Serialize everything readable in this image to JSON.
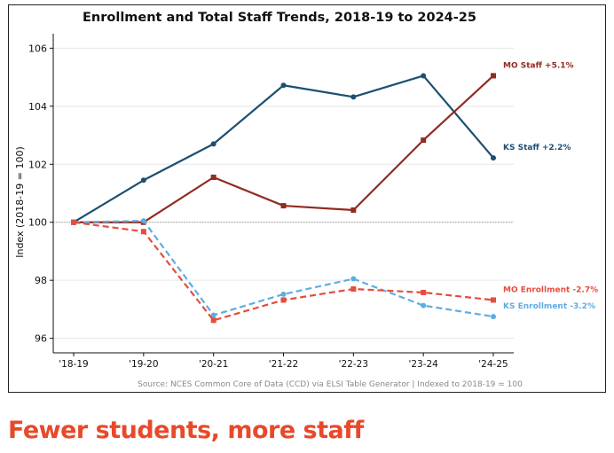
{
  "headline": "Fewer students, more staff",
  "chart_data": {
    "type": "line",
    "title": "Enrollment and Total Staff Trends, 2018-19 to 2024-25",
    "xlabel": "",
    "ylabel": "Index (2018-19 = 100)",
    "categories": [
      "'18-19",
      "'19-20",
      "'20-21",
      "'21-22",
      "'22-23",
      "'23-24",
      "'24-25"
    ],
    "ylim": [
      95.5,
      106.5
    ],
    "yticks": [
      96,
      98,
      100,
      102,
      104,
      106
    ],
    "reference_line": 100,
    "grid": true,
    "source": "Source: NCES Common Core of Data (CCD) via ELSI Table Generator  |  Indexed to 2018-19 = 100",
    "series": [
      {
        "name": "KS Staff",
        "label": "KS Staff +2.2%",
        "color": "#1b4f72",
        "dashed": false,
        "marker": "circle",
        "values": [
          100.0,
          101.45,
          102.7,
          104.72,
          104.32,
          105.05,
          102.22
        ]
      },
      {
        "name": "MO Staff",
        "label": "MO Staff +5.1%",
        "color": "#922b21",
        "dashed": false,
        "marker": "square",
        "values": [
          100.0,
          100.0,
          101.55,
          100.57,
          100.42,
          102.83,
          105.05
        ]
      },
      {
        "name": "KS Enrollment",
        "label": "KS Enrollment -3.2%",
        "color": "#5dade2",
        "dashed": true,
        "marker": "circle",
        "values": [
          100.0,
          100.05,
          96.8,
          97.52,
          98.05,
          97.13,
          96.75
        ]
      },
      {
        "name": "MO Enrollment",
        "label": "MO Enrollment -2.7%",
        "color": "#e74c3c",
        "dashed": true,
        "marker": "square",
        "values": [
          100.0,
          99.68,
          96.62,
          97.32,
          97.7,
          97.58,
          97.32
        ]
      }
    ]
  }
}
